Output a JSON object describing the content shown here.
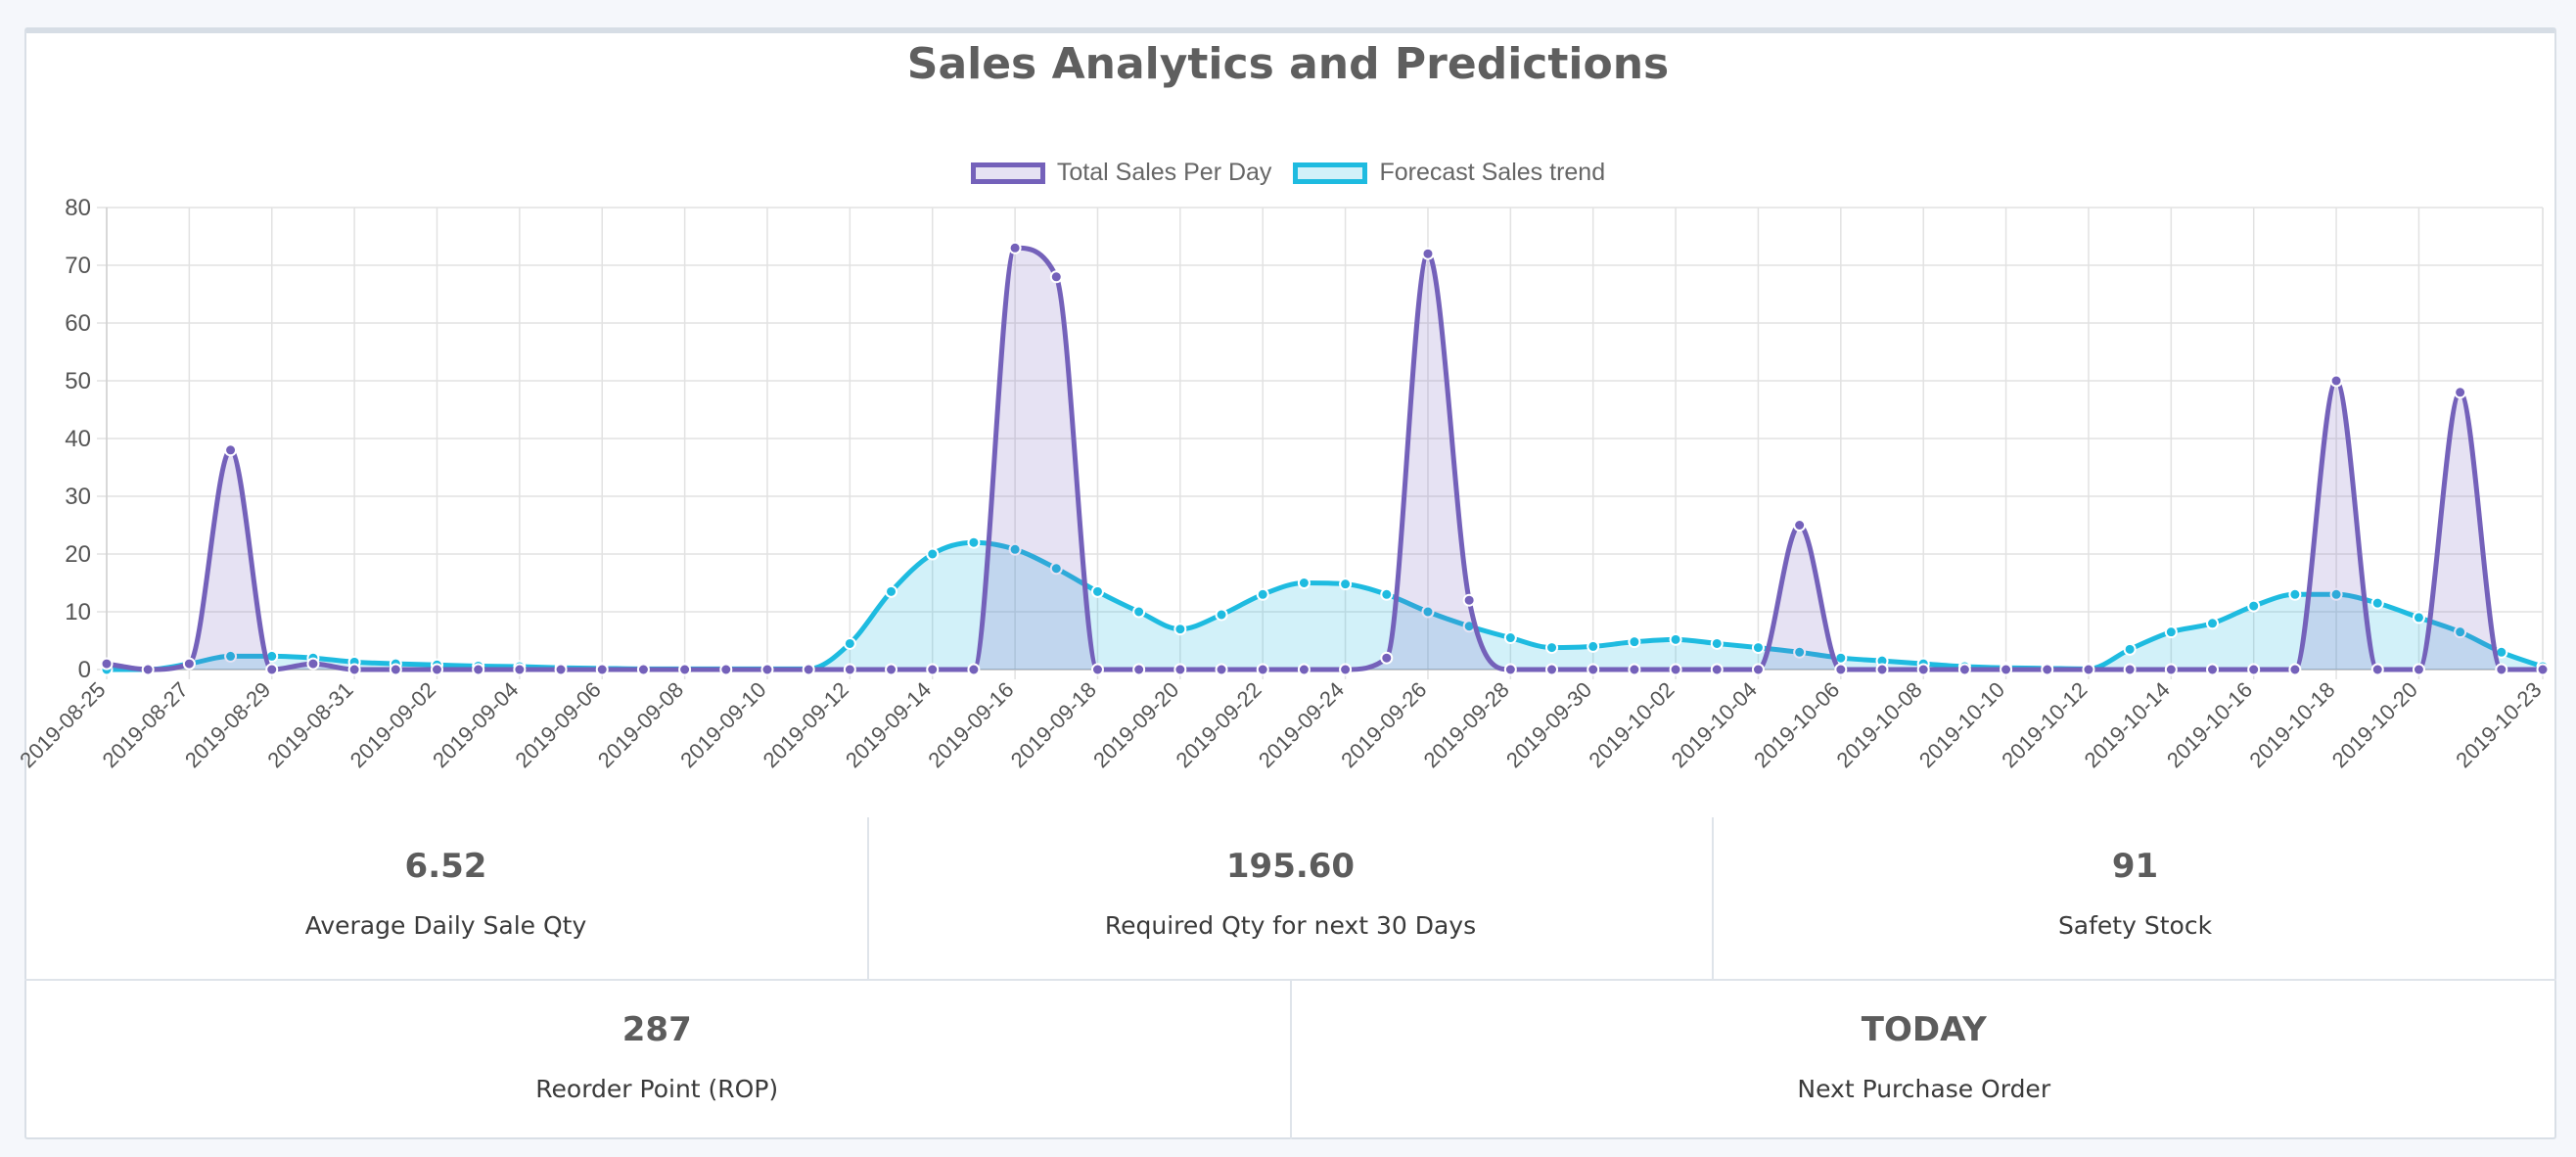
{
  "title": "Sales Analytics and Predictions",
  "colors": {
    "sales": "#7461ba",
    "sales_fill": "rgba(116,97,186,0.18)",
    "forecast": "#1ebbe0",
    "forecast_fill": "rgba(30,187,224,0.20)",
    "grid": "#e2e2e2",
    "axis_text": "#555555"
  },
  "chart_data": {
    "type": "line",
    "title": "Sales Analytics and Predictions",
    "legend_position": "top",
    "grid": true,
    "ylim": [
      0,
      80
    ],
    "yticks": [
      0,
      10,
      20,
      30,
      40,
      50,
      60,
      70,
      80
    ],
    "x": [
      "2019-08-25",
      "2019-08-26",
      "2019-08-27",
      "2019-08-28",
      "2019-08-29",
      "2019-08-30",
      "2019-08-31",
      "2019-09-01",
      "2019-09-02",
      "2019-09-03",
      "2019-09-04",
      "2019-09-05",
      "2019-09-06",
      "2019-09-07",
      "2019-09-08",
      "2019-09-09",
      "2019-09-10",
      "2019-09-11",
      "2019-09-12",
      "2019-09-13",
      "2019-09-14",
      "2019-09-15",
      "2019-09-16",
      "2019-09-17",
      "2019-09-18",
      "2019-09-19",
      "2019-09-20",
      "2019-09-21",
      "2019-09-22",
      "2019-09-23",
      "2019-09-24",
      "2019-09-25",
      "2019-09-26",
      "2019-09-27",
      "2019-09-28",
      "2019-09-29",
      "2019-09-30",
      "2019-10-01",
      "2019-10-02",
      "2019-10-03",
      "2019-10-04",
      "2019-10-05",
      "2019-10-06",
      "2019-10-07",
      "2019-10-08",
      "2019-10-09",
      "2019-10-10",
      "2019-10-11",
      "2019-10-12",
      "2019-10-13",
      "2019-10-14",
      "2019-10-15",
      "2019-10-16",
      "2019-10-17",
      "2019-10-18",
      "2019-10-19",
      "2019-10-20",
      "2019-10-21",
      "2019-10-22",
      "2019-10-23"
    ],
    "xtick_labels": [
      "2019-08-25",
      "2019-08-27",
      "2019-08-29",
      "2019-08-31",
      "2019-09-02",
      "2019-09-04",
      "2019-09-06",
      "2019-09-08",
      "2019-09-10",
      "2019-09-12",
      "2019-09-14",
      "2019-09-16",
      "2019-09-18",
      "2019-09-20",
      "2019-09-22",
      "2019-09-24",
      "2019-09-26",
      "2019-09-28",
      "2019-09-30",
      "2019-10-02",
      "2019-10-04",
      "2019-10-06",
      "2019-10-08",
      "2019-10-10",
      "2019-10-12",
      "2019-10-14",
      "2019-10-16",
      "2019-10-18",
      "2019-10-20",
      "2019-10-23"
    ],
    "series": [
      {
        "name": "Total Sales Per Day",
        "values": [
          1,
          0,
          1,
          38,
          0,
          1,
          0,
          0,
          0,
          0,
          0,
          0,
          0,
          0,
          0,
          0,
          0,
          0,
          0,
          0,
          0,
          0,
          73,
          68,
          0,
          0,
          0,
          0,
          0,
          0,
          0,
          2,
          72,
          12,
          0,
          0,
          0,
          0,
          0,
          0,
          0,
          25,
          0,
          0,
          0,
          0,
          0,
          0,
          0,
          0,
          0,
          0,
          0,
          0,
          50,
          0,
          0,
          48,
          0,
          0
        ]
      },
      {
        "name": "Forecast Sales trend",
        "values": [
          0,
          0,
          1,
          2.3,
          2.3,
          2,
          1.3,
          1,
          0.8,
          0.6,
          0.5,
          0.3,
          0.2,
          0.1,
          0.1,
          0.1,
          0.1,
          0.1,
          4.5,
          13.5,
          20,
          22,
          20.8,
          17.5,
          13.5,
          10,
          7,
          9.5,
          13,
          15,
          14.8,
          13,
          10,
          7.5,
          5.5,
          3.8,
          4,
          4.8,
          5.2,
          4.5,
          3.8,
          3,
          2,
          1.5,
          1,
          0.5,
          0.3,
          0.2,
          0.1,
          3.5,
          6.5,
          8,
          11,
          13,
          13,
          11.5,
          9,
          6.5,
          3,
          0.5
        ]
      }
    ]
  },
  "stats": {
    "row1": [
      {
        "value": "6.52",
        "label": "Average Daily Sale Qty"
      },
      {
        "value": "195.60",
        "label": "Required Qty for next 30 Days"
      },
      {
        "value": "91",
        "label": "Safety Stock"
      }
    ],
    "row2": [
      {
        "value": "287",
        "label": "Reorder Point (ROP)"
      },
      {
        "value": "TODAY",
        "label": "Next Purchase Order"
      }
    ]
  }
}
